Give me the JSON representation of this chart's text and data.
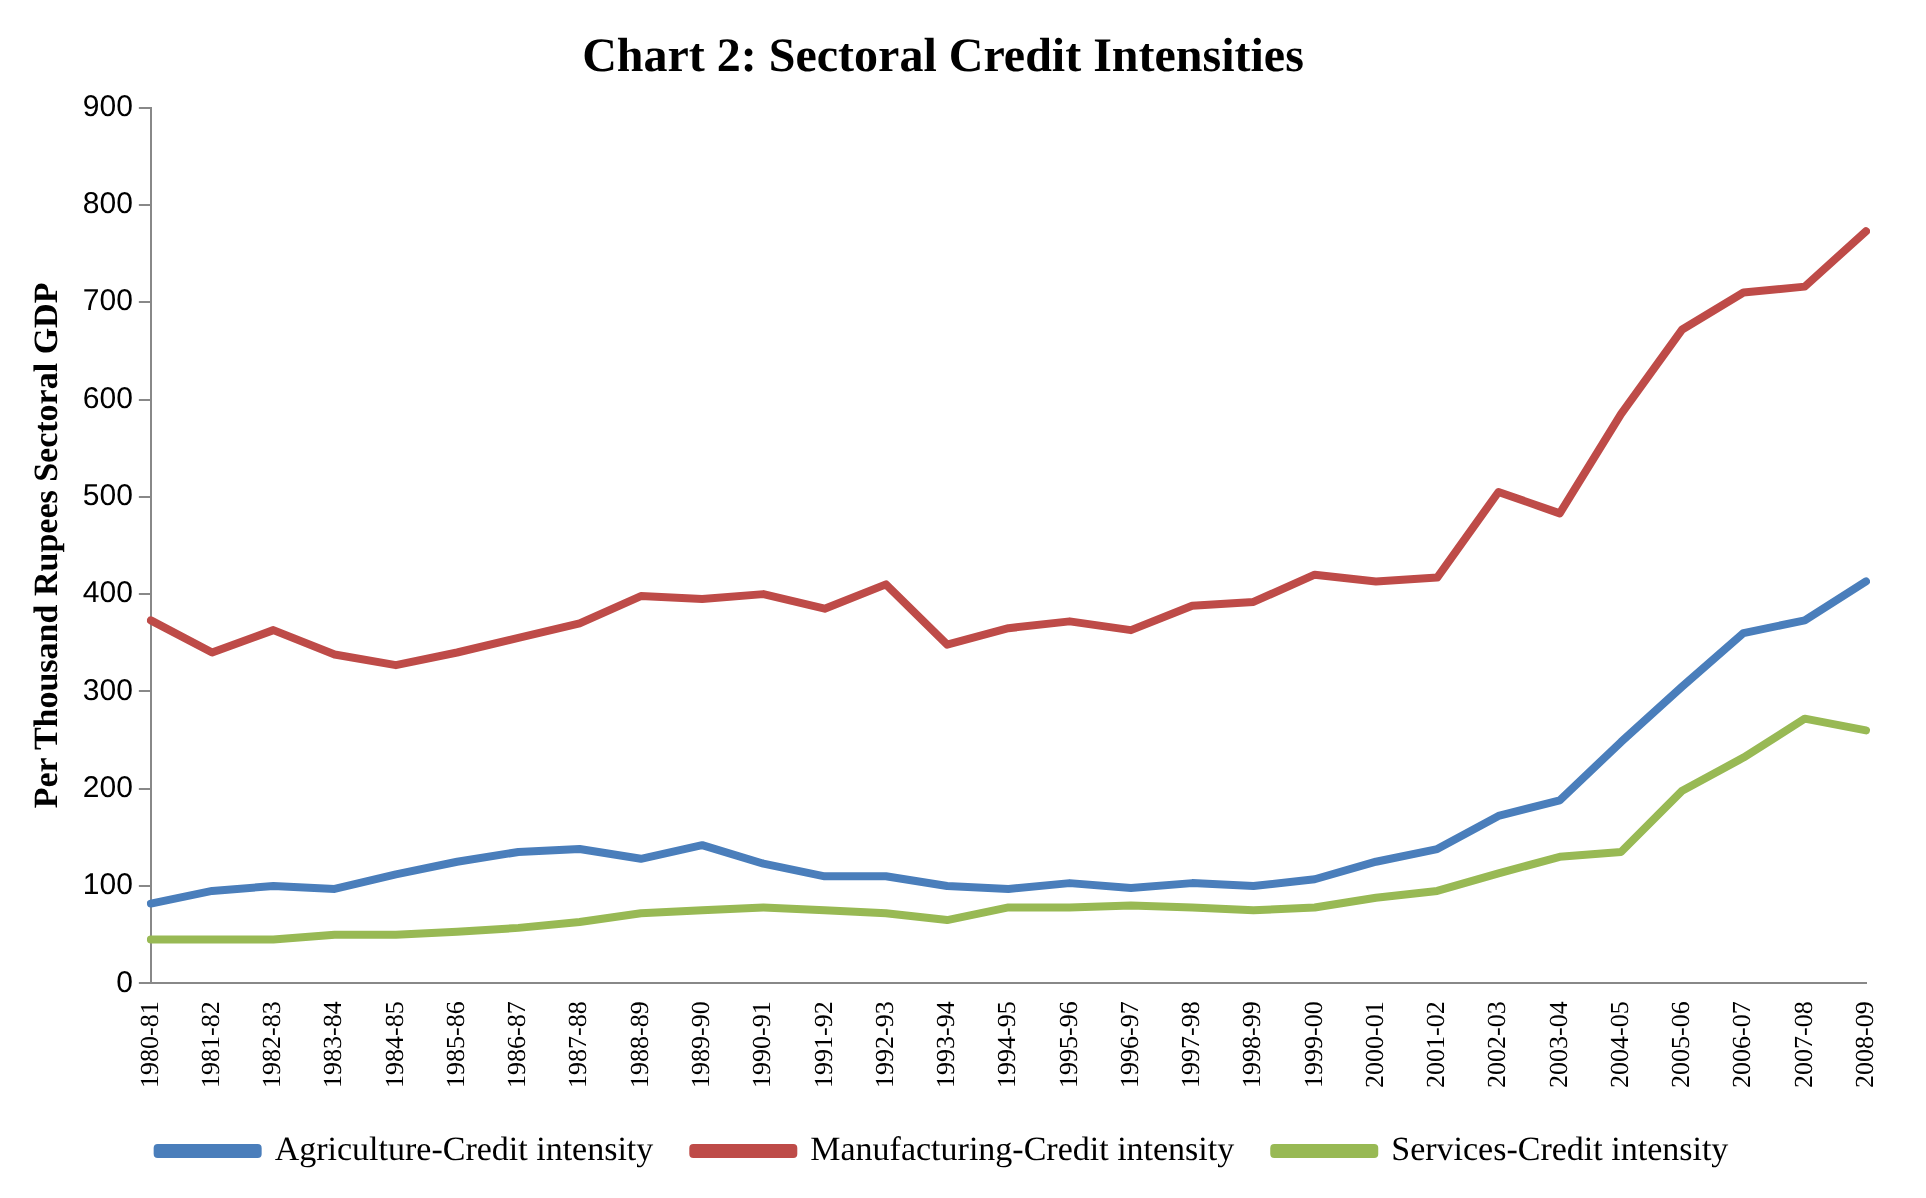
{
  "chart_data": {
    "type": "line",
    "title": "Chart 2: Sectoral Credit Intensities",
    "ylabel": "Per Thousand Rupees Sectoral GDP",
    "categories": [
      "1980-81",
      "1981-82",
      "1982-83",
      "1983-84",
      "1984-85",
      "1985-86",
      "1986-87",
      "1987-88",
      "1988-89",
      "1989-90",
      "1990-91",
      "1991-92",
      "1992-93",
      "1993-94",
      "1994-95",
      "1995-96",
      "1996-97",
      "1997-98",
      "1998-99",
      "1999-00",
      "2000-01",
      "2001-02",
      "2002-03",
      "2003-04",
      "2004-05",
      "2005-06",
      "2006-07",
      "2007-08",
      "2008-09"
    ],
    "series": [
      {
        "name": "Agriculture-Credit intensity",
        "color": "#4a7ebb",
        "values": [
          82,
          95,
          100,
          97,
          112,
          125,
          135,
          138,
          128,
          142,
          123,
          110,
          110,
          100,
          97,
          103,
          98,
          103,
          100,
          107,
          125,
          138,
          172,
          188,
          248,
          305,
          360,
          373,
          413
        ]
      },
      {
        "name": "Manufacturing-Credit intensity",
        "color": "#be4b48",
        "values": [
          373,
          340,
          363,
          338,
          327,
          340,
          355,
          370,
          398,
          395,
          400,
          385,
          410,
          348,
          365,
          372,
          363,
          388,
          392,
          420,
          413,
          417,
          505,
          483,
          585,
          672,
          710,
          716,
          773
        ]
      },
      {
        "name": "Services-Credit intensity",
        "color": "#98b954",
        "values": [
          45,
          45,
          45,
          50,
          50,
          53,
          57,
          63,
          72,
          75,
          78,
          75,
          72,
          65,
          78,
          78,
          80,
          78,
          75,
          78,
          88,
          95,
          113,
          130,
          135,
          198,
          232,
          272,
          260
        ]
      }
    ],
    "ylim": [
      0,
      900
    ],
    "yticks": [
      0,
      100,
      200,
      300,
      400,
      500,
      600,
      700,
      800,
      900
    ],
    "grid": false,
    "legend": "bottom",
    "marker": "none",
    "line_style": "solid"
  }
}
